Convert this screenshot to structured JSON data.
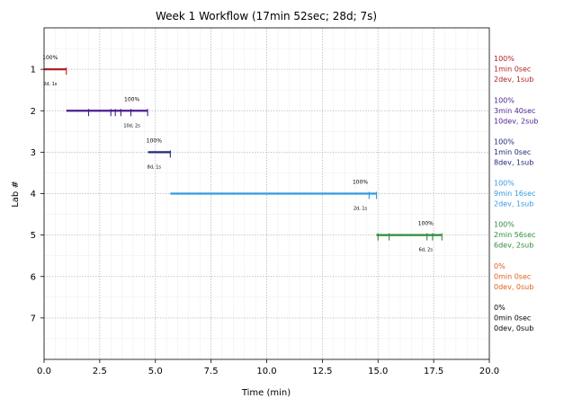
{
  "chart_data": {
    "type": "gantt",
    "title": "Week 1 Workflow (17min 52sec; 28d; 7s)",
    "xlabel": "Time (min)",
    "ylabel": "Lab #",
    "xlim": [
      0,
      20
    ],
    "ylim": [
      0,
      8
    ],
    "x_ticks": [
      "0.0",
      "2.5",
      "5.0",
      "7.5",
      "10.0",
      "12.5",
      "15.0",
      "17.5",
      "20.0"
    ],
    "y_ticks": [
      "1",
      "2",
      "3",
      "4",
      "5",
      "6",
      "7"
    ],
    "grid": true,
    "labs": [
      {
        "lab": 1,
        "start": 0.0,
        "end": 1.0,
        "color": "#b22222",
        "pct": "100%",
        "sub_label": "2d, 1s",
        "tick_marks": [
          1.0
        ],
        "summary": [
          "100%",
          "1min 0sec",
          "2dev, 1sub"
        ]
      },
      {
        "lab": 2,
        "start": 1.0,
        "end": 4.67,
        "color": "#4b1d8f",
        "pct": "100%",
        "sub_label": "10d, 2s",
        "tick_marks": [
          2.0,
          3.0,
          3.2,
          3.45,
          3.9,
          4.65
        ],
        "summary": [
          "100%",
          "3min 40sec",
          "10dev, 2sub"
        ]
      },
      {
        "lab": 3,
        "start": 4.67,
        "end": 5.67,
        "color": "#1f2a78",
        "pct": "100%",
        "sub_label": "8d, 1s",
        "tick_marks": [
          5.67
        ],
        "summary": [
          "100%",
          "1min 0sec",
          "8dev, 1sub"
        ]
      },
      {
        "lab": 4,
        "start": 5.67,
        "end": 14.93,
        "color": "#3399e0",
        "pct": "100%",
        "sub_label": "2d, 1s",
        "tick_marks": [
          14.6,
          14.93
        ],
        "summary": [
          "100%",
          "9min 16sec",
          "2dev, 1sub"
        ]
      },
      {
        "lab": 5,
        "start": 14.93,
        "end": 17.87,
        "color": "#2e8b3a",
        "pct": "100%",
        "sub_label": "6d, 2s",
        "tick_marks": [
          15.0,
          15.5,
          17.2,
          17.45,
          17.87
        ],
        "summary": [
          "100%",
          "2min 56sec",
          "6dev, 2sub"
        ]
      },
      {
        "lab": 6,
        "start": null,
        "end": null,
        "color": "#e0601a",
        "pct": "",
        "sub_label": "",
        "tick_marks": [],
        "summary": [
          "0%",
          "0min 0sec",
          "0dev, 0sub"
        ]
      },
      {
        "lab": 7,
        "start": null,
        "end": null,
        "color": "#000000",
        "pct": "",
        "sub_label": "",
        "tick_marks": [],
        "summary": [
          "0%",
          "0min 0sec",
          "0dev, 0sub"
        ]
      }
    ]
  }
}
